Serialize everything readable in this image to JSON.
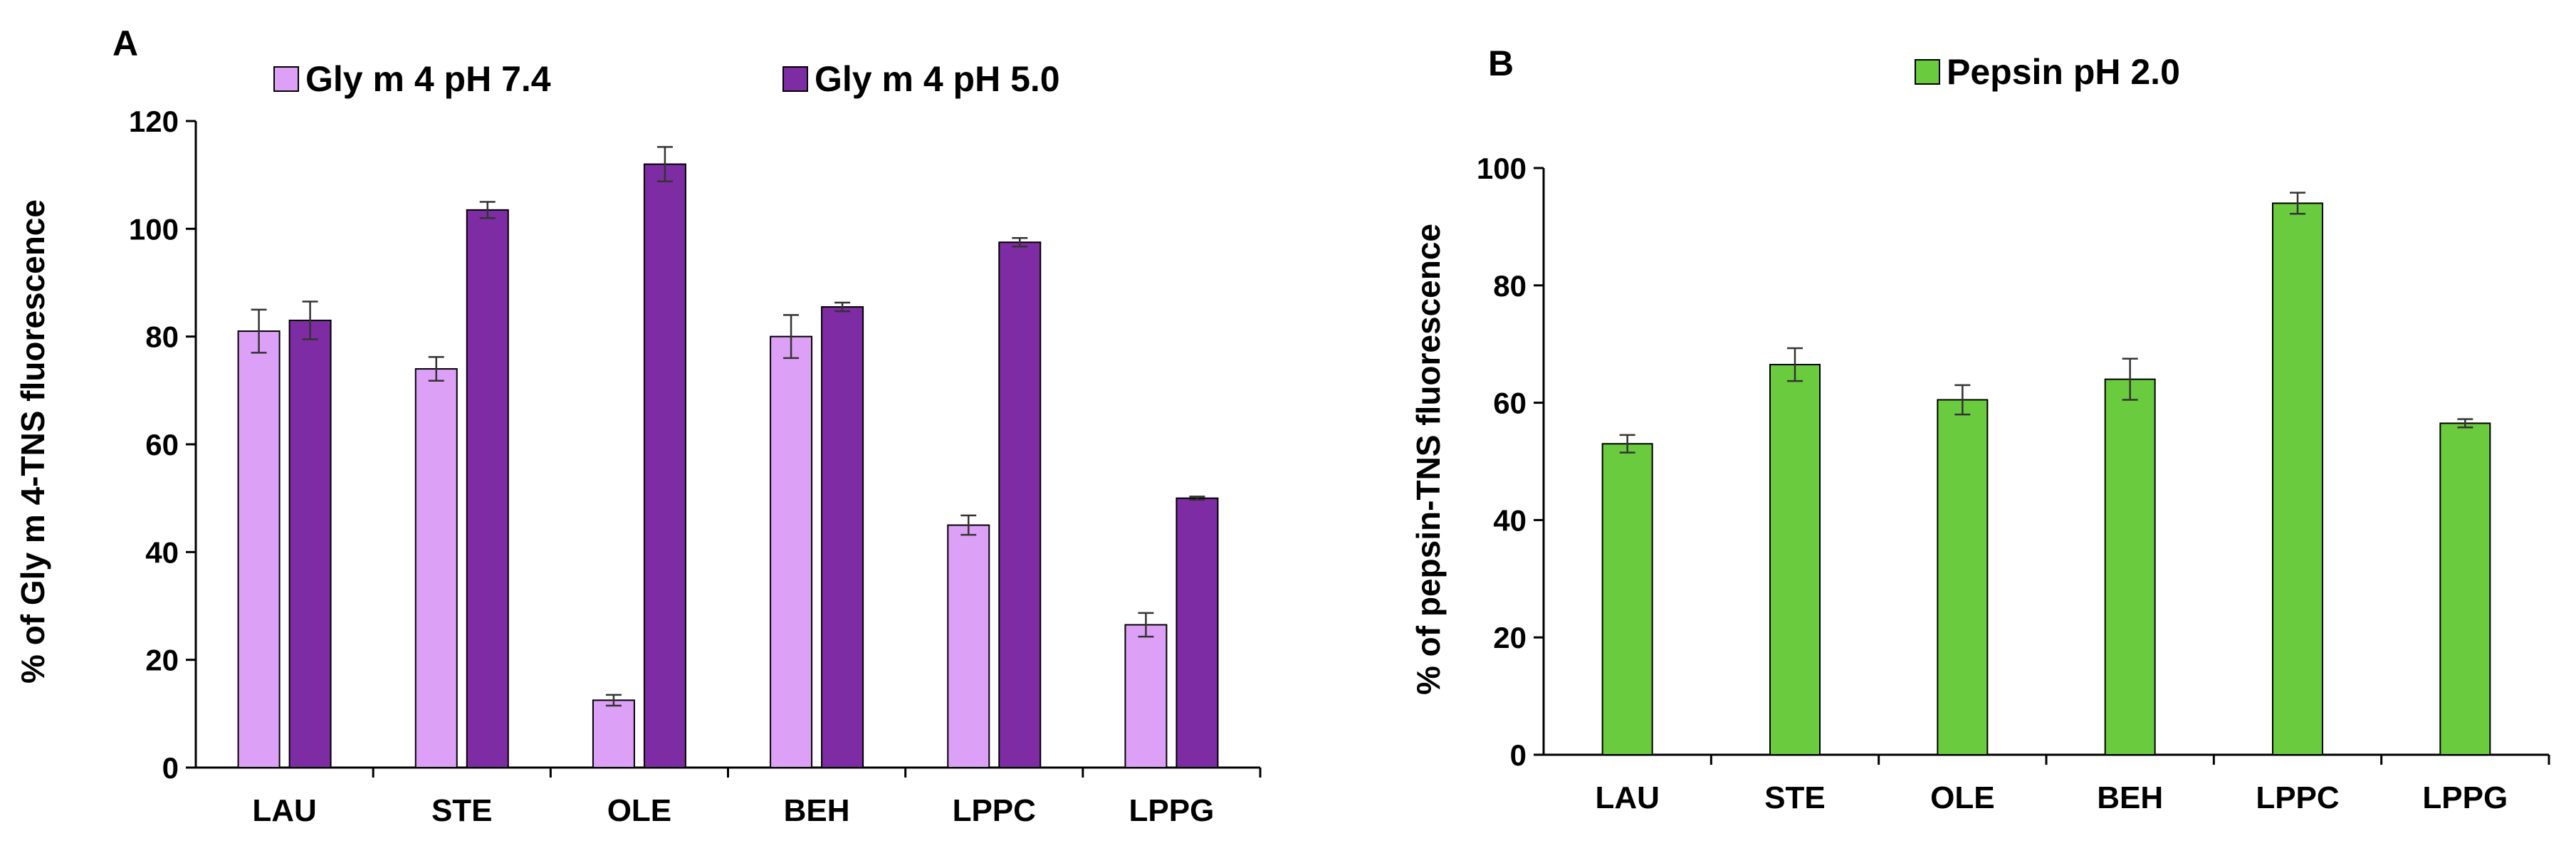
{
  "chart_data": [
    {
      "panel": "A",
      "type": "bar",
      "ylabel": "% of Gly m 4-TNS fluorescence",
      "xlabel": "",
      "ylim": [
        0,
        120
      ],
      "yticks": [
        0,
        20,
        40,
        60,
        80,
        100,
        120
      ],
      "categories": [
        "LAU",
        "STE",
        "OLE",
        "BEH",
        "LPPC",
        "LPPG"
      ],
      "series": [
        {
          "name": "Gly m 4 pH 7.4",
          "color": "#DDA0F7",
          "values": [
            81,
            74,
            12.5,
            80,
            45,
            26.5
          ],
          "errors": [
            4,
            2.2,
            1.0,
            4,
            1.8,
            2.2
          ]
        },
        {
          "name": "Gly m 4 pH 5.0",
          "color": "#7E2CA3",
          "values": [
            83,
            103.5,
            112,
            85.5,
            97.5,
            50
          ],
          "errors": [
            3.5,
            1.5,
            3.2,
            0.8,
            0.8,
            0.3
          ]
        }
      ]
    },
    {
      "panel": "B",
      "type": "bar",
      "ylabel": "% of pepsin-TNS fluorescence",
      "xlabel": "",
      "ylim": [
        0,
        100
      ],
      "yticks": [
        0,
        20,
        40,
        60,
        80,
        100
      ],
      "categories": [
        "LAU",
        "STE",
        "OLE",
        "BEH",
        "LPPC",
        "LPPG"
      ],
      "series": [
        {
          "name": "Pepsin pH 2.0",
          "color": "#6BCB3F",
          "values": [
            53,
            66.5,
            60.5,
            64,
            94,
            56.5
          ],
          "errors": [
            1.5,
            2.8,
            2.5,
            3.5,
            1.8,
            0.7
          ]
        }
      ]
    }
  ]
}
